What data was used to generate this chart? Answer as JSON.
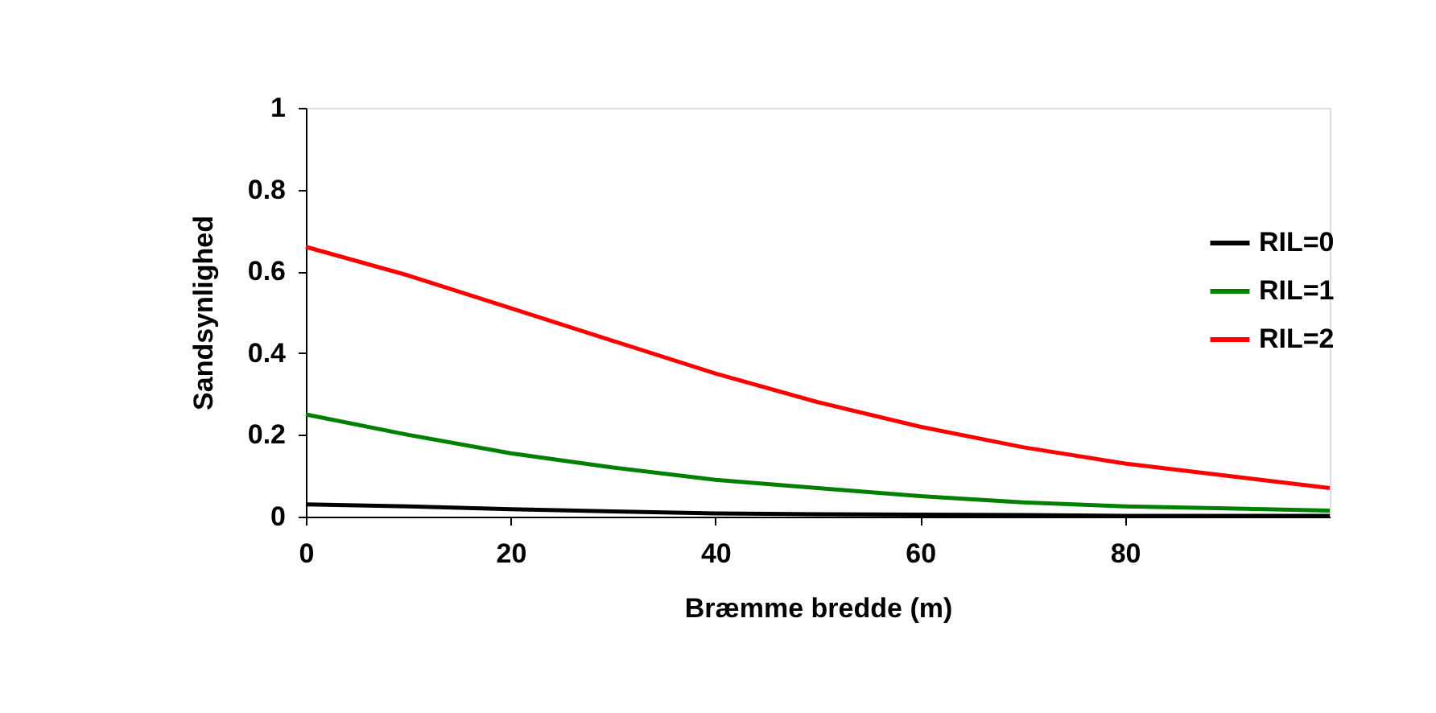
{
  "chart_data": {
    "type": "line",
    "xlabel": "Bræmme bredde (m)",
    "ylabel": "Sandsynlighed",
    "x": [
      0,
      10,
      20,
      30,
      40,
      50,
      60,
      70,
      80,
      90,
      100
    ],
    "series": [
      {
        "name": "RIL=0",
        "color": "#000000",
        "values": [
          0.03,
          0.025,
          0.018,
          0.013,
          0.008,
          0.006,
          0.005,
          0.004,
          0.002,
          0.002,
          0.002
        ]
      },
      {
        "name": "RIL=1",
        "color": "#008000",
        "values": [
          0.25,
          0.2,
          0.155,
          0.12,
          0.09,
          0.07,
          0.05,
          0.035,
          0.025,
          0.02,
          0.015
        ]
      },
      {
        "name": "RIL=2",
        "color": "#ff0000",
        "values": [
          0.66,
          0.59,
          0.51,
          0.43,
          0.35,
          0.28,
          0.22,
          0.17,
          0.13,
          0.1,
          0.07
        ]
      }
    ],
    "xlim": [
      0,
      100
    ],
    "xticks": [
      0,
      20,
      40,
      60,
      80
    ],
    "ylim": [
      0,
      1
    ],
    "yticks": [
      0,
      0.2,
      0.4,
      0.6,
      0.8,
      1
    ],
    "grid": false,
    "legend": "right",
    "marker": "none",
    "line_style": "solid"
  }
}
